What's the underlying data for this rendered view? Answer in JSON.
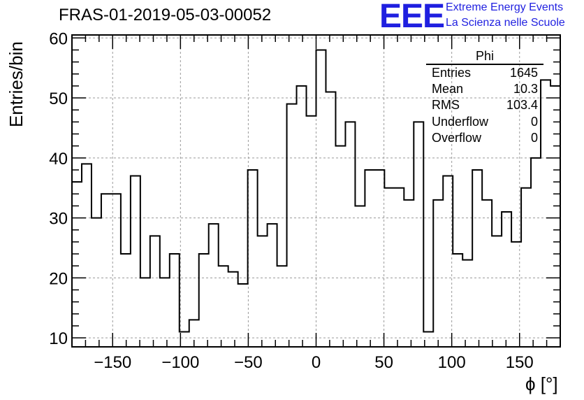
{
  "title": "FRAS-01-2019-05-03-00052",
  "logo": {
    "mark": "EEE",
    "line1": "Extreme Energy Events",
    "line2": "La Scienza nelle Scuole",
    "color": "#1f1fe0"
  },
  "stats_box": {
    "title": "Phi",
    "rows": [
      {
        "label": "Entries",
        "value": "1645"
      },
      {
        "label": "Mean",
        "value": "10.3"
      },
      {
        "label": "RMS",
        "value": "103.4"
      },
      {
        "label": "Underflow",
        "value": "0"
      },
      {
        "label": "Overflow",
        "value": "0"
      }
    ]
  },
  "chart_data": {
    "type": "histogram",
    "xlabel": "ϕ [°]",
    "ylabel": "Entries/bin",
    "xlim": [
      -180,
      180
    ],
    "ylim": [
      8.5,
      60.5
    ],
    "xticks": [
      -150,
      -100,
      -50,
      0,
      50,
      100,
      150
    ],
    "yticks": [
      10,
      20,
      30,
      40,
      50,
      60
    ],
    "grid": true,
    "bin_width": 7.2,
    "bin_edges_start": -180,
    "values": [
      36,
      39,
      30,
      34,
      34,
      24,
      37,
      20,
      27,
      20,
      24,
      11,
      13,
      24,
      29,
      22,
      21,
      19,
      38,
      27,
      29,
      22,
      49,
      52,
      47,
      58,
      51,
      42,
      46,
      32,
      38,
      38,
      35,
      35,
      33,
      46,
      11,
      33,
      37,
      24,
      23,
      38,
      33,
      27,
      31,
      26,
      35,
      40,
      53,
      52
    ],
    "line_color": "#000000"
  }
}
